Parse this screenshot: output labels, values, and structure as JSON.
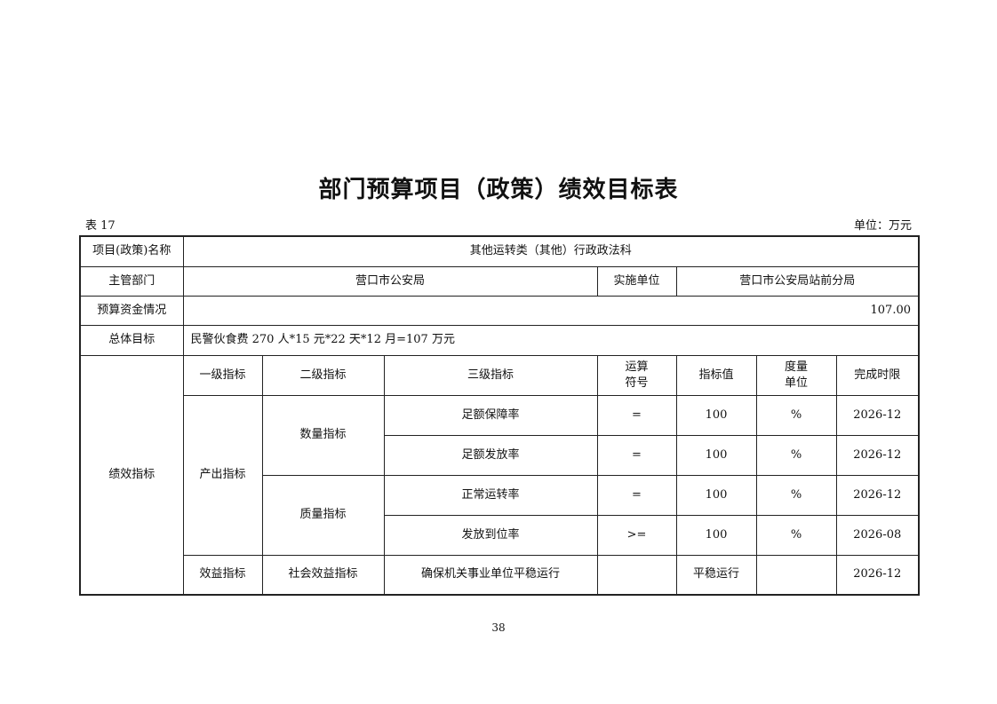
{
  "title": "部门预算项目（政策）绩效目标表",
  "table_no": "表 17",
  "unit": "单位：万元",
  "project_name_label": "项目(政策)名称",
  "project_name": "其他运转类（其他）行政政法科",
  "dept_label": "主管部门",
  "dept": "营口市公安局",
  "impl_label": "实施单位",
  "impl": "营口市公安局站前分局",
  "budget_label": "预算资金情况",
  "budget": "107.00",
  "goal_label": "总体目标",
  "goal": "民警伙食费 270 人*15 元*22 天*12 月=107 万元",
  "perf_label": "绩效指标",
  "headers": [
    "一级指标",
    "二级指标",
    "三级指标",
    "运算符号",
    "指标值",
    "度量单位",
    "完成时限"
  ],
  "header_lines": {
    "op": [
      "运算",
      "符号"
    ],
    "unit": [
      "度量",
      "单位"
    ]
  },
  "level1": [
    "产出指标",
    "效益指标"
  ],
  "level2": [
    "数量指标",
    "质量指标",
    "社会效益指标"
  ],
  "rows": [
    {
      "name": "足额保障率",
      "op": "=",
      "value": "100",
      "unit": "%",
      "deadline": "2026-12"
    },
    {
      "name": "足额发放率",
      "op": "=",
      "value": "100",
      "unit": "%",
      "deadline": "2026-12"
    },
    {
      "name": "正常运转率",
      "op": "=",
      "value": "100",
      "unit": "%",
      "deadline": "2026-12"
    },
    {
      "name": "发放到位率",
      "op": ">=",
      "value": "100",
      "unit": "%",
      "deadline": "2026-08"
    },
    {
      "name": "确保机关事业单位平稳运行",
      "op": "",
      "value": "平稳运行",
      "unit": "",
      "deadline": "2026-12"
    }
  ],
  "page_number": "38"
}
